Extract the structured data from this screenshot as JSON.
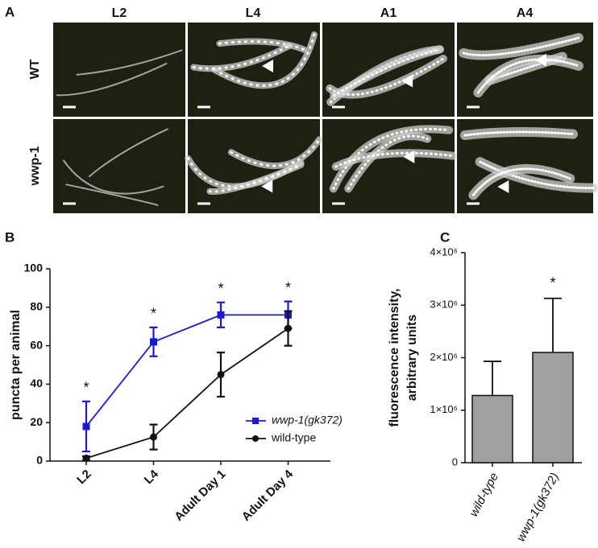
{
  "panels": {
    "a": {
      "label": "A",
      "columns": [
        "L2",
        "L4",
        "A1",
        "A4"
      ],
      "rows": [
        "WT",
        "wwp-1"
      ]
    },
    "b": {
      "label": "B"
    },
    "c": {
      "label": "C"
    }
  },
  "chart_data": [
    {
      "type": "line",
      "ylabel": "puncta per animal",
      "categories": [
        "L2",
        "L4",
        "Adult Day 1",
        "Adult Day 4"
      ],
      "series": [
        {
          "name": "wwp-1(gk372)",
          "color": "#1a1ad6",
          "marker": "square",
          "values": [
            18,
            62,
            76,
            76
          ],
          "errors": [
            13,
            7.5,
            6.5,
            7
          ]
        },
        {
          "name": "wild-type",
          "color": "#111111",
          "marker": "circle",
          "values": [
            1.5,
            12.5,
            45,
            69
          ],
          "errors": [
            1,
            6.5,
            11.5,
            9
          ]
        }
      ],
      "annotations": [
        "*",
        "*",
        "*",
        "*"
      ],
      "ylim": [
        0,
        100
      ],
      "yticks": [
        0,
        20,
        40,
        60,
        80,
        100
      ]
    },
    {
      "type": "bar",
      "ylabel": [
        "fluorescence intensity,",
        "arbitrary units"
      ],
      "categories": [
        "wild-type",
        "wwp-1(gk372)"
      ],
      "values": [
        1280000,
        2100000
      ],
      "errors": [
        650000,
        1030000
      ],
      "color": "#a0a0a0",
      "annotations": [
        null,
        "*"
      ],
      "ylim": [
        0,
        4000000
      ],
      "yticks": [
        0,
        {
          "value": 1000000,
          "label": "1×10⁶"
        },
        {
          "value": 2000000,
          "label": "2×10⁶"
        },
        {
          "value": 3000000,
          "label": "3×10⁶"
        },
        {
          "value": 4000000,
          "label": "4×10⁶"
        }
      ]
    }
  ]
}
